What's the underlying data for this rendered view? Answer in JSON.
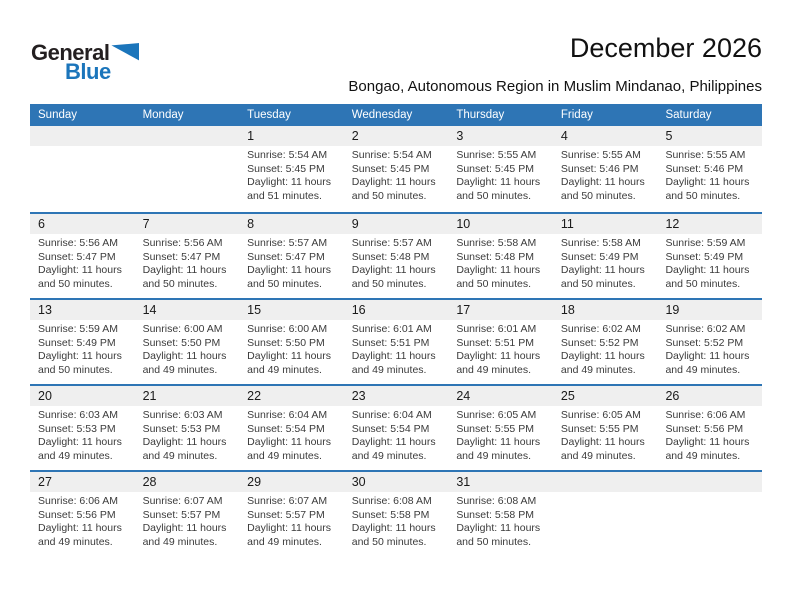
{
  "logo": {
    "part1": "General",
    "part2": "Blue"
  },
  "header": {
    "title": "December 2026",
    "subtitle": "Bongao, Autonomous Region in Muslim Mindanao, Philippines"
  },
  "colors": {
    "header_bg": "#2e75b5",
    "week_separator": "#2e75b5",
    "number_strip_bg": "#efefef",
    "logo_blue": "#1b75bb"
  },
  "weekdays": [
    "Sunday",
    "Monday",
    "Tuesday",
    "Wednesday",
    "Thursday",
    "Friday",
    "Saturday"
  ],
  "weeks": [
    [
      {
        "day": "",
        "sunrise": "",
        "sunset": "",
        "daylight": ""
      },
      {
        "day": "",
        "sunrise": "",
        "sunset": "",
        "daylight": ""
      },
      {
        "day": "1",
        "sunrise": "Sunrise: 5:54 AM",
        "sunset": "Sunset: 5:45 PM",
        "daylight": "Daylight: 11 hours and 51 minutes."
      },
      {
        "day": "2",
        "sunrise": "Sunrise: 5:54 AM",
        "sunset": "Sunset: 5:45 PM",
        "daylight": "Daylight: 11 hours and 50 minutes."
      },
      {
        "day": "3",
        "sunrise": "Sunrise: 5:55 AM",
        "sunset": "Sunset: 5:45 PM",
        "daylight": "Daylight: 11 hours and 50 minutes."
      },
      {
        "day": "4",
        "sunrise": "Sunrise: 5:55 AM",
        "sunset": "Sunset: 5:46 PM",
        "daylight": "Daylight: 11 hours and 50 minutes."
      },
      {
        "day": "5",
        "sunrise": "Sunrise: 5:55 AM",
        "sunset": "Sunset: 5:46 PM",
        "daylight": "Daylight: 11 hours and 50 minutes."
      }
    ],
    [
      {
        "day": "6",
        "sunrise": "Sunrise: 5:56 AM",
        "sunset": "Sunset: 5:47 PM",
        "daylight": "Daylight: 11 hours and 50 minutes."
      },
      {
        "day": "7",
        "sunrise": "Sunrise: 5:56 AM",
        "sunset": "Sunset: 5:47 PM",
        "daylight": "Daylight: 11 hours and 50 minutes."
      },
      {
        "day": "8",
        "sunrise": "Sunrise: 5:57 AM",
        "sunset": "Sunset: 5:47 PM",
        "daylight": "Daylight: 11 hours and 50 minutes."
      },
      {
        "day": "9",
        "sunrise": "Sunrise: 5:57 AM",
        "sunset": "Sunset: 5:48 PM",
        "daylight": "Daylight: 11 hours and 50 minutes."
      },
      {
        "day": "10",
        "sunrise": "Sunrise: 5:58 AM",
        "sunset": "Sunset: 5:48 PM",
        "daylight": "Daylight: 11 hours and 50 minutes."
      },
      {
        "day": "11",
        "sunrise": "Sunrise: 5:58 AM",
        "sunset": "Sunset: 5:49 PM",
        "daylight": "Daylight: 11 hours and 50 minutes."
      },
      {
        "day": "12",
        "sunrise": "Sunrise: 5:59 AM",
        "sunset": "Sunset: 5:49 PM",
        "daylight": "Daylight: 11 hours and 50 minutes."
      }
    ],
    [
      {
        "day": "13",
        "sunrise": "Sunrise: 5:59 AM",
        "sunset": "Sunset: 5:49 PM",
        "daylight": "Daylight: 11 hours and 50 minutes."
      },
      {
        "day": "14",
        "sunrise": "Sunrise: 6:00 AM",
        "sunset": "Sunset: 5:50 PM",
        "daylight": "Daylight: 11 hours and 49 minutes."
      },
      {
        "day": "15",
        "sunrise": "Sunrise: 6:00 AM",
        "sunset": "Sunset: 5:50 PM",
        "daylight": "Daylight: 11 hours and 49 minutes."
      },
      {
        "day": "16",
        "sunrise": "Sunrise: 6:01 AM",
        "sunset": "Sunset: 5:51 PM",
        "daylight": "Daylight: 11 hours and 49 minutes."
      },
      {
        "day": "17",
        "sunrise": "Sunrise: 6:01 AM",
        "sunset": "Sunset: 5:51 PM",
        "daylight": "Daylight: 11 hours and 49 minutes."
      },
      {
        "day": "18",
        "sunrise": "Sunrise: 6:02 AM",
        "sunset": "Sunset: 5:52 PM",
        "daylight": "Daylight: 11 hours and 49 minutes."
      },
      {
        "day": "19",
        "sunrise": "Sunrise: 6:02 AM",
        "sunset": "Sunset: 5:52 PM",
        "daylight": "Daylight: 11 hours and 49 minutes."
      }
    ],
    [
      {
        "day": "20",
        "sunrise": "Sunrise: 6:03 AM",
        "sunset": "Sunset: 5:53 PM",
        "daylight": "Daylight: 11 hours and 49 minutes."
      },
      {
        "day": "21",
        "sunrise": "Sunrise: 6:03 AM",
        "sunset": "Sunset: 5:53 PM",
        "daylight": "Daylight: 11 hours and 49 minutes."
      },
      {
        "day": "22",
        "sunrise": "Sunrise: 6:04 AM",
        "sunset": "Sunset: 5:54 PM",
        "daylight": "Daylight: 11 hours and 49 minutes."
      },
      {
        "day": "23",
        "sunrise": "Sunrise: 6:04 AM",
        "sunset": "Sunset: 5:54 PM",
        "daylight": "Daylight: 11 hours and 49 minutes."
      },
      {
        "day": "24",
        "sunrise": "Sunrise: 6:05 AM",
        "sunset": "Sunset: 5:55 PM",
        "daylight": "Daylight: 11 hours and 49 minutes."
      },
      {
        "day": "25",
        "sunrise": "Sunrise: 6:05 AM",
        "sunset": "Sunset: 5:55 PM",
        "daylight": "Daylight: 11 hours and 49 minutes."
      },
      {
        "day": "26",
        "sunrise": "Sunrise: 6:06 AM",
        "sunset": "Sunset: 5:56 PM",
        "daylight": "Daylight: 11 hours and 49 minutes."
      }
    ],
    [
      {
        "day": "27",
        "sunrise": "Sunrise: 6:06 AM",
        "sunset": "Sunset: 5:56 PM",
        "daylight": "Daylight: 11 hours and 49 minutes."
      },
      {
        "day": "28",
        "sunrise": "Sunrise: 6:07 AM",
        "sunset": "Sunset: 5:57 PM",
        "daylight": "Daylight: 11 hours and 49 minutes."
      },
      {
        "day": "29",
        "sunrise": "Sunrise: 6:07 AM",
        "sunset": "Sunset: 5:57 PM",
        "daylight": "Daylight: 11 hours and 49 minutes."
      },
      {
        "day": "30",
        "sunrise": "Sunrise: 6:08 AM",
        "sunset": "Sunset: 5:58 PM",
        "daylight": "Daylight: 11 hours and 50 minutes."
      },
      {
        "day": "31",
        "sunrise": "Sunrise: 6:08 AM",
        "sunset": "Sunset: 5:58 PM",
        "daylight": "Daylight: 11 hours and 50 minutes."
      },
      {
        "day": "",
        "sunrise": "",
        "sunset": "",
        "daylight": ""
      },
      {
        "day": "",
        "sunrise": "",
        "sunset": "",
        "daylight": ""
      }
    ]
  ]
}
